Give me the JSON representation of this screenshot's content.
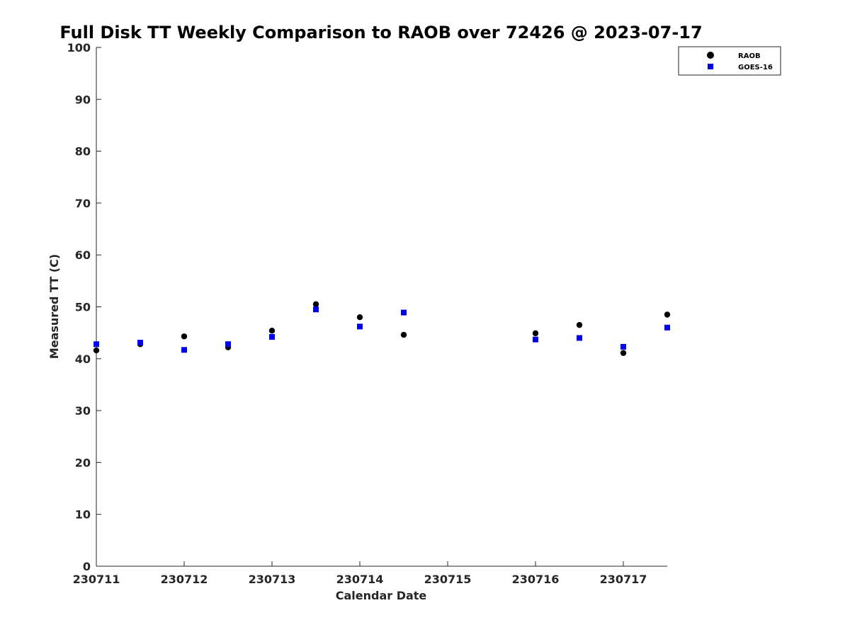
{
  "chart_data": {
    "type": "scatter",
    "title": "Full Disk TT Weekly Comparison to RAOB over 72426 @ 2023-07-17",
    "xlabel": "Calendar Date",
    "ylabel": "Measured TT (C)",
    "xlim": [
      "2023-07-11T00:00",
      "2023-07-17T12:00"
    ],
    "ylim": [
      0,
      100
    ],
    "x_tick_labels": [
      "230711",
      "230712",
      "230713",
      "230714",
      "230715",
      "230716",
      "230717"
    ],
    "y_tick_labels": [
      "0",
      "10",
      "20",
      "30",
      "40",
      "50",
      "60",
      "70",
      "80",
      "90",
      "100"
    ],
    "grid": false,
    "legend_position": "top-right",
    "series": [
      {
        "name": "RAOB",
        "marker": "circle",
        "color": "#000000",
        "points": [
          {
            "x": "2023-07-11T00:00",
            "y": 41.6
          },
          {
            "x": "2023-07-11T12:00",
            "y": 42.8
          },
          {
            "x": "2023-07-12T00:00",
            "y": 44.3
          },
          {
            "x": "2023-07-12T12:00",
            "y": 42.2
          },
          {
            "x": "2023-07-13T00:00",
            "y": 45.4
          },
          {
            "x": "2023-07-13T12:00",
            "y": 50.5
          },
          {
            "x": "2023-07-14T00:00",
            "y": 48.0
          },
          {
            "x": "2023-07-14T12:00",
            "y": 44.6
          },
          {
            "x": "2023-07-16T00:00",
            "y": 44.9
          },
          {
            "x": "2023-07-16T12:00",
            "y": 46.5
          },
          {
            "x": "2023-07-17T00:00",
            "y": 41.1
          },
          {
            "x": "2023-07-17T12:00",
            "y": 48.5
          }
        ]
      },
      {
        "name": "GOES-16",
        "marker": "square",
        "color": "#0000e6",
        "points": [
          {
            "x": "2023-07-11T00:00",
            "y": 42.8
          },
          {
            "x": "2023-07-11T12:00",
            "y": 43.1
          },
          {
            "x": "2023-07-12T00:00",
            "y": 41.7
          },
          {
            "x": "2023-07-12T12:00",
            "y": 42.8
          },
          {
            "x": "2023-07-13T00:00",
            "y": 44.2
          },
          {
            "x": "2023-07-13T12:00",
            "y": 49.5
          },
          {
            "x": "2023-07-14T00:00",
            "y": 46.2
          },
          {
            "x": "2023-07-14T12:00",
            "y": 48.9
          },
          {
            "x": "2023-07-16T00:00",
            "y": 43.7
          },
          {
            "x": "2023-07-16T12:00",
            "y": 44.0
          },
          {
            "x": "2023-07-17T00:00",
            "y": 42.3
          },
          {
            "x": "2023-07-17T12:00",
            "y": 46.0
          }
        ]
      }
    ]
  }
}
